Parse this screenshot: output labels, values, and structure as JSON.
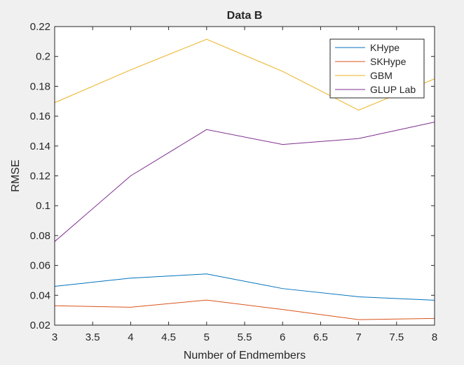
{
  "chart_data": {
    "type": "line",
    "title": "Data B",
    "xlabel": "Number of Endmembers",
    "ylabel": "RMSE",
    "xlim": [
      3,
      8
    ],
    "ylim": [
      0.02,
      0.22
    ],
    "xticks": [
      3,
      3.5,
      4,
      4.5,
      5,
      5.5,
      6,
      6.5,
      7,
      7.5,
      8
    ],
    "xtick_labels": [
      "3",
      "3.5",
      "4",
      "4.5",
      "5",
      "5.5",
      "6",
      "6.5",
      "7",
      "7.5",
      "8"
    ],
    "yticks": [
      0.02,
      0.04,
      0.06,
      0.08,
      0.1,
      0.12,
      0.14,
      0.16,
      0.18,
      0.2,
      0.22
    ],
    "ytick_labels": [
      "0.02",
      "0.04",
      "0.06",
      "0.08",
      "0.1",
      "0.12",
      "0.14",
      "0.16",
      "0.18",
      "0.2",
      "0.22"
    ],
    "grid": false,
    "legend_position": "top-right",
    "x": [
      3,
      4,
      5,
      6,
      7,
      8
    ],
    "series": [
      {
        "name": "KHype",
        "color": "#0072bd",
        "values": [
          0.046,
          0.0515,
          0.0543,
          0.0445,
          0.039,
          0.0367
        ]
      },
      {
        "name": "SKHype",
        "color": "#d95319",
        "values": [
          0.033,
          0.032,
          0.0368,
          0.0305,
          0.0237,
          0.0245
        ]
      },
      {
        "name": "GBM",
        "color": "#edb120",
        "values": [
          0.169,
          0.191,
          0.2115,
          0.19,
          0.164,
          0.185
        ]
      },
      {
        "name": "GLUP Lab",
        "color": "#7e2f8e",
        "values": [
          0.076,
          0.12,
          0.151,
          0.141,
          0.145,
          0.156
        ]
      }
    ]
  }
}
